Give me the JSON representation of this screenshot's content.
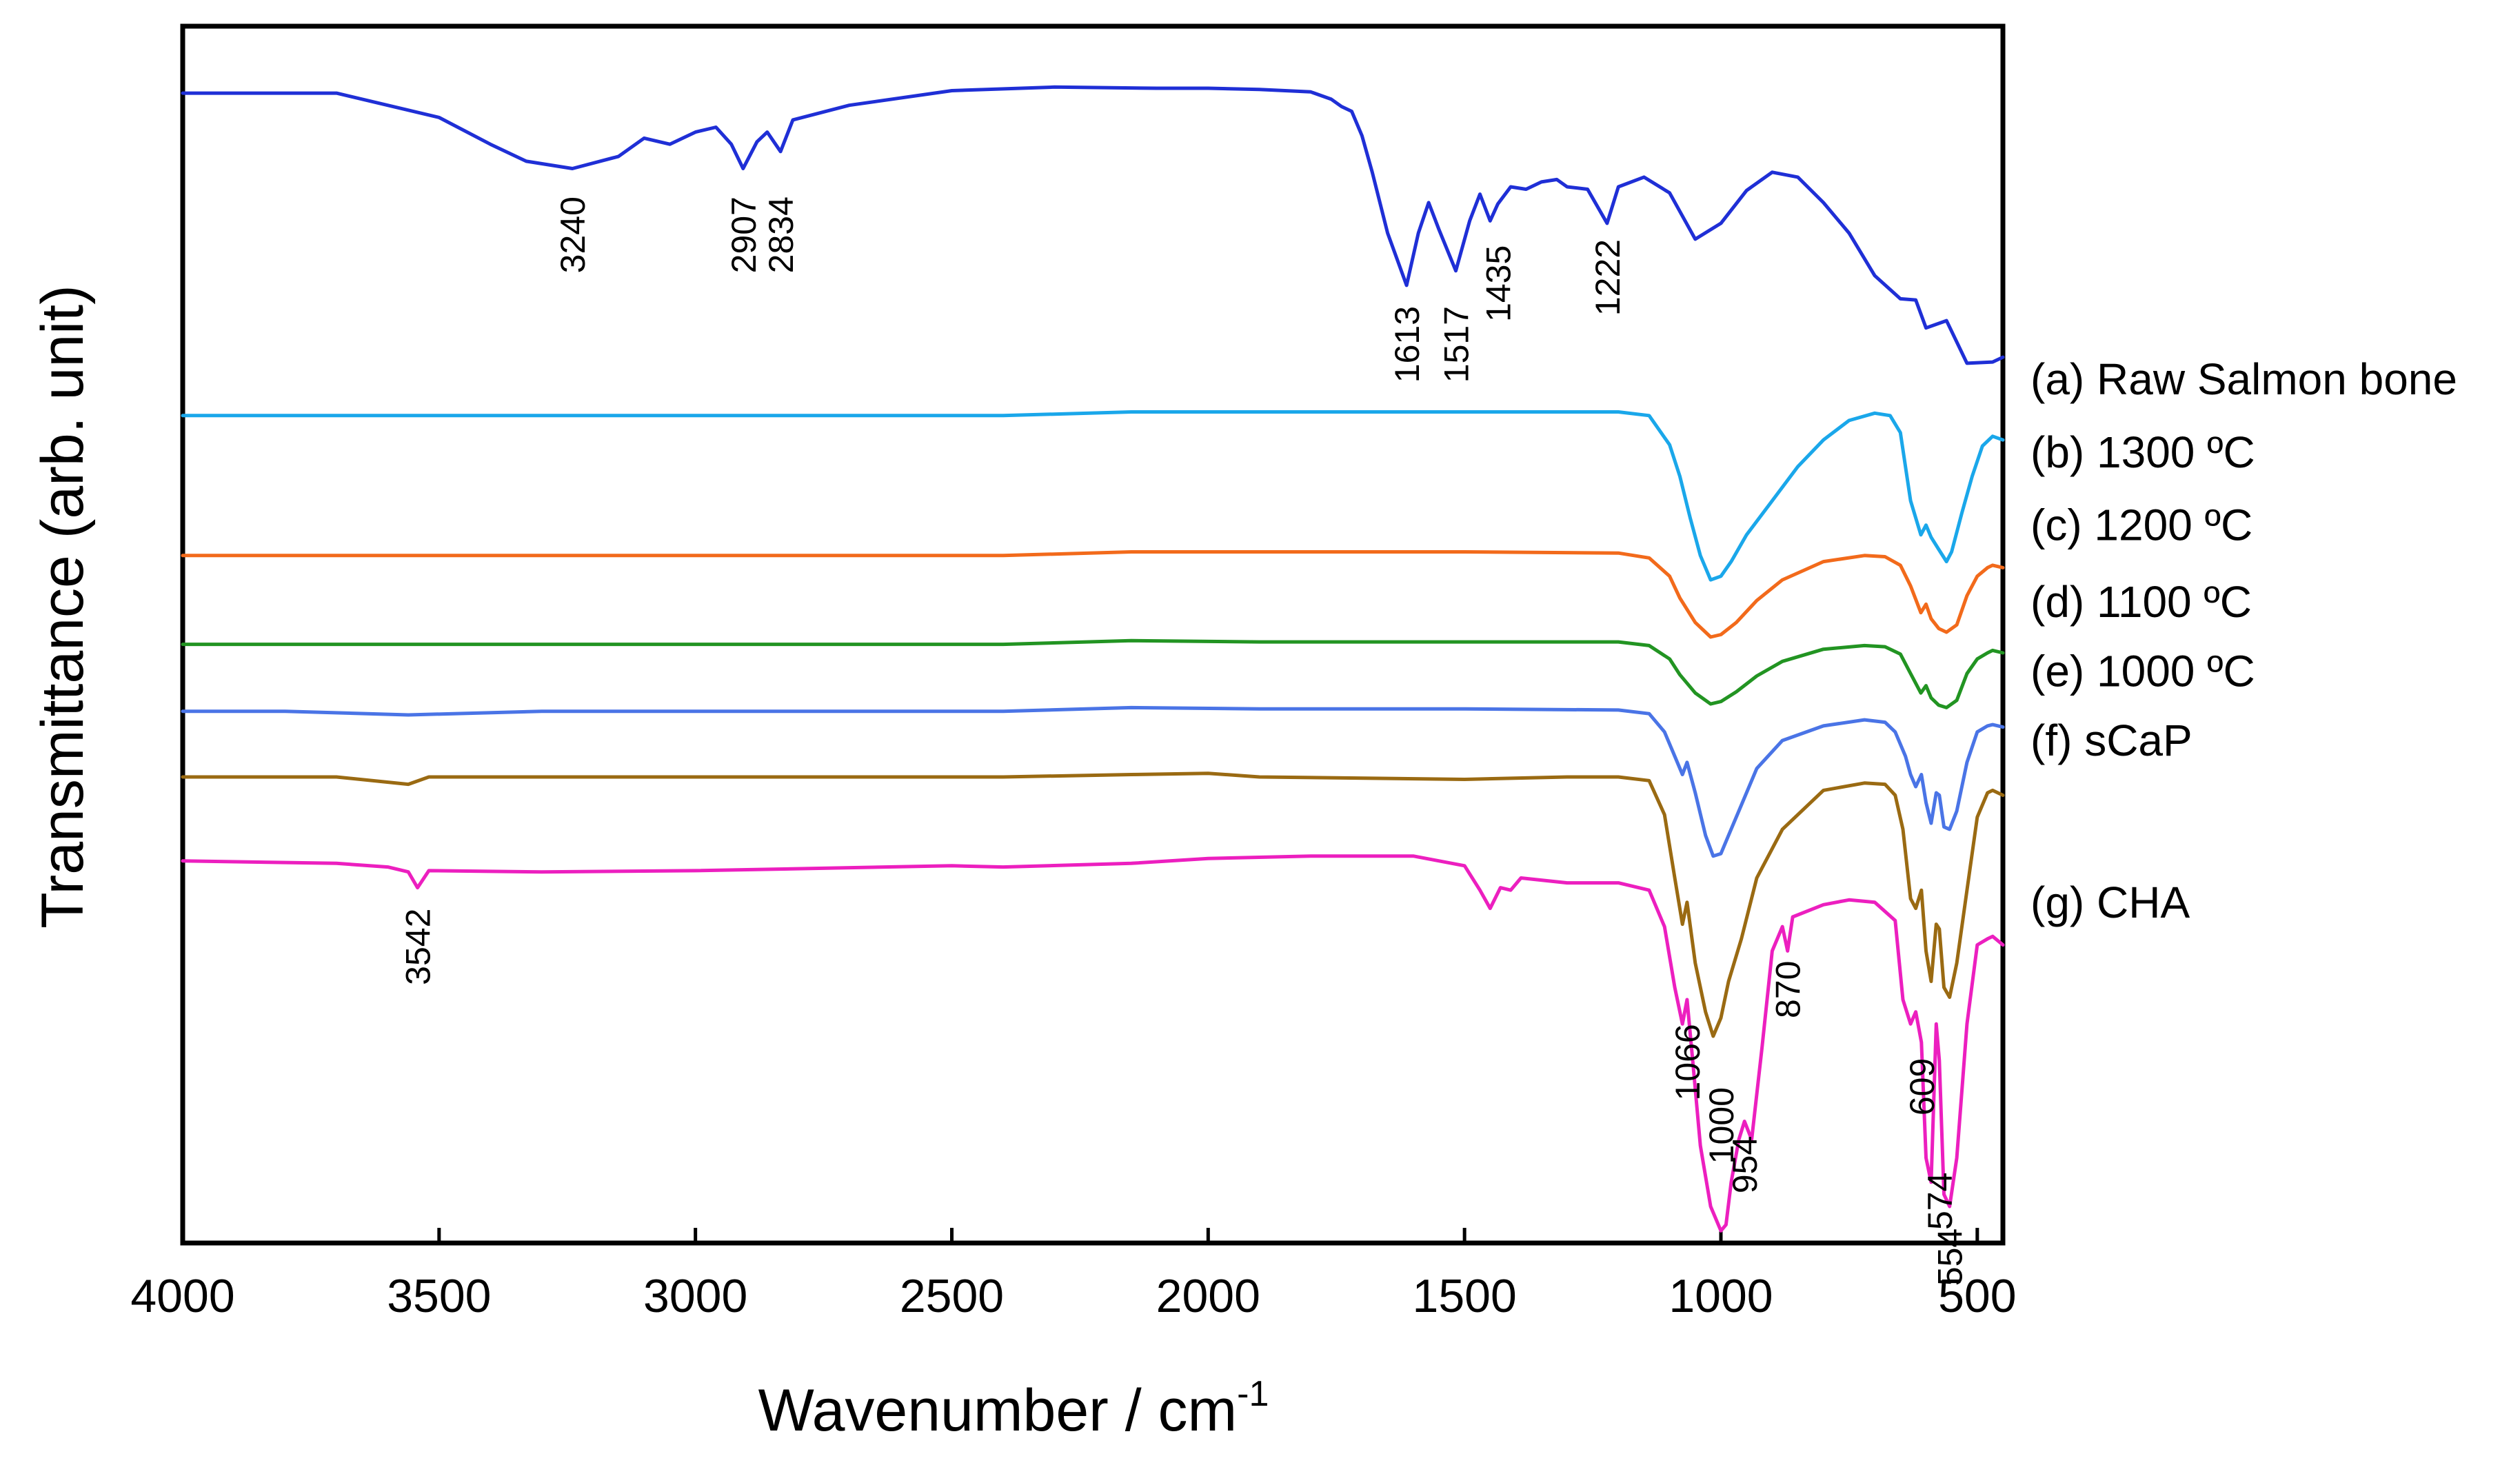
{
  "chart_data": {
    "type": "line",
    "title": "",
    "xlabel": "Wavenumber / cm",
    "xlabel_sup": "-1",
    "ylabel": "Transmittance (arb. unit)",
    "xlim": [
      4000,
      450
    ],
    "ylim": [
      0,
      1
    ],
    "x_ticks": [
      4000,
      3500,
      3000,
      2500,
      2000,
      1500,
      1000,
      500
    ],
    "x_tick_labels": [
      "4000",
      "3500",
      "3000",
      "2500",
      "2000",
      "1500",
      "1000",
      "500"
    ],
    "grid": false,
    "legend": "right, inline labels",
    "series": [
      {
        "name": "(a) Raw Salmon bone",
        "color": "#1f2fd6",
        "x": [
          4000,
          3700,
          3500,
          3400,
          3330,
          3240,
          3150,
          3100,
          3050,
          3000,
          2960,
          2930,
          2907,
          2880,
          2860,
          2834,
          2810,
          2700,
          2500,
          2300,
          2100,
          2000,
          1900,
          1800,
          1760,
          1740,
          1720,
          1700,
          1680,
          1650,
          1613,
          1590,
          1570,
          1550,
          1517,
          1490,
          1470,
          1450,
          1435,
          1410,
          1380,
          1350,
          1320,
          1300,
          1260,
          1222,
          1200,
          1150,
          1100,
          1050,
          1000,
          950,
          900,
          850,
          800,
          750,
          700,
          650,
          620,
          600,
          560,
          520,
          470,
          450
        ],
        "y": [
          0.945,
          0.945,
          0.925,
          0.903,
          0.889,
          0.883,
          0.893,
          0.908,
          0.903,
          0.913,
          0.917,
          0.903,
          0.883,
          0.905,
          0.913,
          0.897,
          0.923,
          0.935,
          0.947,
          0.95,
          0.949,
          0.949,
          0.948,
          0.946,
          0.94,
          0.934,
          0.93,
          0.91,
          0.88,
          0.83,
          0.787,
          0.83,
          0.855,
          0.833,
          0.799,
          0.84,
          0.862,
          0.84,
          0.854,
          0.868,
          0.866,
          0.872,
          0.874,
          0.868,
          0.866,
          0.838,
          0.868,
          0.876,
          0.863,
          0.825,
          0.838,
          0.865,
          0.88,
          0.876,
          0.855,
          0.83,
          0.795,
          0.776,
          0.775,
          0.752,
          0.758,
          0.723,
          0.724,
          0.728
        ]
      },
      {
        "name": "(b) 1300 ºC",
        "color": "#1aa7ea",
        "x": [
          4000,
          3000,
          2400,
          2150,
          1900,
          1500,
          1200,
          1140,
          1100,
          1080,
          1060,
          1040,
          1020,
          1000,
          980,
          950,
          900,
          850,
          800,
          750,
          700,
          670,
          650,
          630,
          610,
          600,
          590,
          575,
          560,
          550,
          530,
          510,
          490,
          470,
          450
        ],
        "y": [
          0.68,
          0.68,
          0.68,
          0.683,
          0.683,
          0.683,
          0.683,
          0.68,
          0.656,
          0.63,
          0.596,
          0.565,
          0.545,
          0.548,
          0.56,
          0.582,
          0.61,
          0.638,
          0.66,
          0.676,
          0.682,
          0.68,
          0.666,
          0.61,
          0.582,
          0.59,
          0.58,
          0.57,
          0.56,
          0.568,
          0.6,
          0.63,
          0.655,
          0.663,
          0.66
        ]
      },
      {
        "name": "(c) 1200 ºC",
        "color": "#f26a1b",
        "x": [
          4000,
          3000,
          2400,
          2150,
          1900,
          1500,
          1200,
          1140,
          1100,
          1080,
          1050,
          1020,
          1000,
          970,
          930,
          880,
          800,
          720,
          680,
          650,
          630,
          610,
          600,
          590,
          575,
          560,
          540,
          520,
          500,
          480,
          470,
          450
        ],
        "y": [
          0.565,
          0.565,
          0.565,
          0.568,
          0.568,
          0.568,
          0.567,
          0.563,
          0.548,
          0.53,
          0.51,
          0.498,
          0.5,
          0.51,
          0.528,
          0.545,
          0.56,
          0.565,
          0.564,
          0.557,
          0.54,
          0.518,
          0.525,
          0.513,
          0.505,
          0.502,
          0.508,
          0.532,
          0.548,
          0.555,
          0.557,
          0.555
        ]
      },
      {
        "name": "(d) 1100 ºC",
        "color": "#229422",
        "x": [
          4000,
          3000,
          2400,
          2150,
          1900,
          1500,
          1200,
          1140,
          1100,
          1080,
          1050,
          1020,
          1000,
          970,
          930,
          880,
          800,
          720,
          680,
          650,
          630,
          610,
          600,
          590,
          575,
          560,
          540,
          520,
          500,
          480,
          470,
          450
        ],
        "y": [
          0.492,
          0.492,
          0.492,
          0.495,
          0.494,
          0.494,
          0.494,
          0.491,
          0.48,
          0.467,
          0.452,
          0.443,
          0.445,
          0.453,
          0.466,
          0.478,
          0.488,
          0.491,
          0.49,
          0.484,
          0.468,
          0.452,
          0.458,
          0.448,
          0.442,
          0.44,
          0.446,
          0.468,
          0.48,
          0.485,
          0.487,
          0.485
        ]
      },
      {
        "name": "(e) 1000 ºC",
        "color": "#4a74e6",
        "x": [
          4000,
          3800,
          3560,
          3300,
          3000,
          2400,
          2150,
          1900,
          1500,
          1200,
          1140,
          1110,
          1090,
          1075,
          1066,
          1050,
          1030,
          1015,
          1000,
          985,
          960,
          930,
          880,
          800,
          720,
          680,
          660,
          640,
          630,
          620,
          609,
          600,
          590,
          580,
          574,
          565,
          554,
          540,
          520,
          500,
          480,
          470,
          450
        ],
        "y": [
          0.437,
          0.437,
          0.434,
          0.437,
          0.437,
          0.437,
          0.44,
          0.439,
          0.439,
          0.438,
          0.435,
          0.42,
          0.4,
          0.385,
          0.395,
          0.37,
          0.335,
          0.318,
          0.32,
          0.335,
          0.36,
          0.39,
          0.413,
          0.425,
          0.43,
          0.428,
          0.42,
          0.4,
          0.385,
          0.375,
          0.385,
          0.362,
          0.345,
          0.37,
          0.368,
          0.342,
          0.34,
          0.355,
          0.395,
          0.42,
          0.425,
          0.426,
          0.424
        ]
      },
      {
        "name": "(f)  sCaP",
        "color": "#9a6a12",
        "x": [
          4000,
          3700,
          3560,
          3520,
          3300,
          3000,
          2400,
          2150,
          2000,
          1900,
          1500,
          1300,
          1200,
          1140,
          1110,
          1090,
          1075,
          1066,
          1050,
          1030,
          1015,
          1000,
          985,
          960,
          930,
          880,
          800,
          720,
          680,
          660,
          645,
          630,
          620,
          609,
          600,
          590,
          580,
          574,
          565,
          554,
          540,
          520,
          500,
          480,
          470,
          450
        ],
        "y": [
          0.383,
          0.383,
          0.377,
          0.383,
          0.383,
          0.383,
          0.383,
          0.385,
          0.386,
          0.383,
          0.381,
          0.383,
          0.383,
          0.38,
          0.352,
          0.3,
          0.262,
          0.28,
          0.23,
          0.19,
          0.17,
          0.185,
          0.215,
          0.25,
          0.3,
          0.34,
          0.372,
          0.378,
          0.377,
          0.368,
          0.34,
          0.283,
          0.275,
          0.29,
          0.24,
          0.215,
          0.262,
          0.258,
          0.21,
          0.202,
          0.23,
          0.29,
          0.35,
          0.37,
          0.372,
          0.368
        ]
      },
      {
        "name": "(g)  CHA",
        "color": "#ec1fbf",
        "x": [
          4000,
          3700,
          3600,
          3560,
          3542,
          3520,
          3300,
          3000,
          2500,
          2400,
          2150,
          2000,
          1800,
          1600,
          1500,
          1470,
          1450,
          1430,
          1410,
          1390,
          1300,
          1200,
          1140,
          1110,
          1090,
          1075,
          1066,
          1055,
          1040,
          1020,
          1000,
          990,
          980,
          965,
          954,
          940,
          920,
          900,
          880,
          870,
          860,
          800,
          750,
          700,
          660,
          645,
          630,
          620,
          609,
          600,
          590,
          580,
          574,
          565,
          554,
          540,
          520,
          500,
          480,
          470,
          450
        ],
        "y": [
          0.314,
          0.312,
          0.309,
          0.305,
          0.292,
          0.306,
          0.305,
          0.306,
          0.31,
          0.309,
          0.312,
          0.316,
          0.318,
          0.318,
          0.31,
          0.29,
          0.275,
          0.292,
          0.29,
          0.3,
          0.296,
          0.296,
          0.29,
          0.26,
          0.21,
          0.18,
          0.2,
          0.15,
          0.08,
          0.03,
          0.01,
          0.015,
          0.05,
          0.085,
          0.1,
          0.085,
          0.16,
          0.24,
          0.26,
          0.24,
          0.268,
          0.278,
          0.282,
          0.28,
          0.265,
          0.2,
          0.18,
          0.19,
          0.165,
          0.07,
          0.05,
          0.18,
          0.15,
          0.04,
          0.03,
          0.07,
          0.18,
          0.245,
          0.25,
          0.252,
          0.245
        ]
      }
    ],
    "annotations": [
      {
        "text": "3240",
        "x": 3240,
        "y": 0.86
      },
      {
        "text": "2907",
        "x": 2907,
        "y": 0.86
      },
      {
        "text": "2834",
        "x": 2834,
        "y": 0.86
      },
      {
        "text": "1613",
        "x": 1613,
        "y": 0.77
      },
      {
        "text": "1517",
        "x": 1517,
        "y": 0.77
      },
      {
        "text": "1435",
        "x": 1435,
        "y": 0.82
      },
      {
        "text": "1222",
        "x": 1222,
        "y": 0.825
      },
      {
        "text": "3542",
        "x": 3542,
        "y": 0.275
      },
      {
        "text": "1066",
        "x": 1066,
        "y": 0.18
      },
      {
        "text": "1000",
        "x": 1000,
        "y": 0.128
      },
      {
        "text": "954",
        "x": 954,
        "y": 0.088
      },
      {
        "text": "870",
        "x": 870,
        "y": 0.232
      },
      {
        "text": "609",
        "x": 609,
        "y": 0.152
      },
      {
        "text": "574",
        "x": 574,
        "y": 0.058
      },
      {
        "text": "554",
        "x": 554,
        "y": 0.012
      }
    ]
  }
}
